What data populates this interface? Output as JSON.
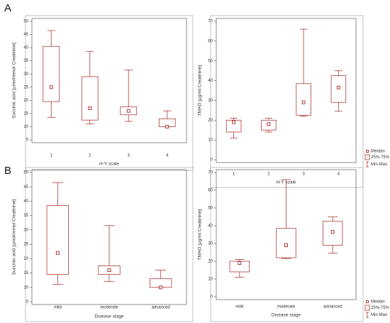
{
  "chart_data": [
    {
      "type": "box",
      "panel": "A",
      "ylabel": "Succinic acid [µmol/mmol Creatinine]",
      "xlabel": "H-Y scale",
      "categories": [
        "1",
        "2",
        "3",
        "4"
      ],
      "color": "#b03a3a",
      "min": [
        13.5,
        11,
        12,
        10
      ],
      "q1": [
        19.5,
        12.5,
        14.5,
        10
      ],
      "median": [
        25,
        17,
        16,
        10
      ],
      "q3": [
        40.5,
        29,
        17.5,
        13
      ],
      "max": [
        46.5,
        38.5,
        31.5,
        16
      ],
      "ylim": [
        5,
        50
      ],
      "yticks": [
        5,
        10,
        15,
        20,
        25,
        30,
        35,
        40,
        45,
        50
      ]
    },
    {
      "type": "box",
      "ylabel": "TMAO [µg/ml Creatinine]",
      "xlabel": "H-Y scale",
      "categories": [
        "1",
        "2",
        "3",
        "4"
      ],
      "color": "#b03a3a",
      "min": [
        11,
        14,
        22,
        24.5
      ],
      "q1": [
        14,
        15,
        22.5,
        29
      ],
      "median": [
        19,
        18,
        29,
        36.5
      ],
      "q3": [
        20,
        20,
        38.5,
        42.5
      ],
      "max": [
        21,
        21,
        66,
        45
      ],
      "ylim": [
        0,
        70
      ],
      "yticks": [
        0,
        10,
        20,
        30,
        40,
        50,
        60,
        70
      ],
      "legend": [
        "Median",
        "25%-75%",
        "Min-Max"
      ]
    },
    {
      "type": "box",
      "panel": "B",
      "ylabel": "Succinic acid [µmol/mmol Creatinine]",
      "xlabel": "Disease stage",
      "categories": [
        "mild",
        "moderate",
        "advanced"
      ],
      "color": "#b03a3a",
      "min": [
        11,
        12,
        10
      ],
      "q1": [
        14.5,
        14.5,
        10
      ],
      "median": [
        22,
        16,
        10
      ],
      "q3": [
        38.5,
        17.5,
        13
      ],
      "max": [
        46.5,
        31.5,
        16
      ],
      "ylim": [
        5,
        50
      ],
      "yticks": [
        5,
        10,
        15,
        20,
        25,
        30,
        35,
        40,
        45,
        50
      ]
    },
    {
      "type": "box",
      "ylabel": "TMAO [µg/ml Creatinine]",
      "xlabel": "Disease stage",
      "categories": [
        "mild",
        "moderate",
        "advanced"
      ],
      "color": "#b03a3a",
      "min": [
        11,
        21.5,
        24.5
      ],
      "q1": [
        14,
        22,
        29
      ],
      "median": [
        19,
        29,
        36.5
      ],
      "q3": [
        20,
        38.5,
        42.5
      ],
      "max": [
        21,
        66,
        45
      ],
      "ylim": [
        0,
        70
      ],
      "yticks": [
        0,
        10,
        20,
        30,
        40,
        50,
        60,
        70
      ],
      "legend": [
        "Median",
        "25%-75%",
        "Min-Max"
      ]
    }
  ]
}
